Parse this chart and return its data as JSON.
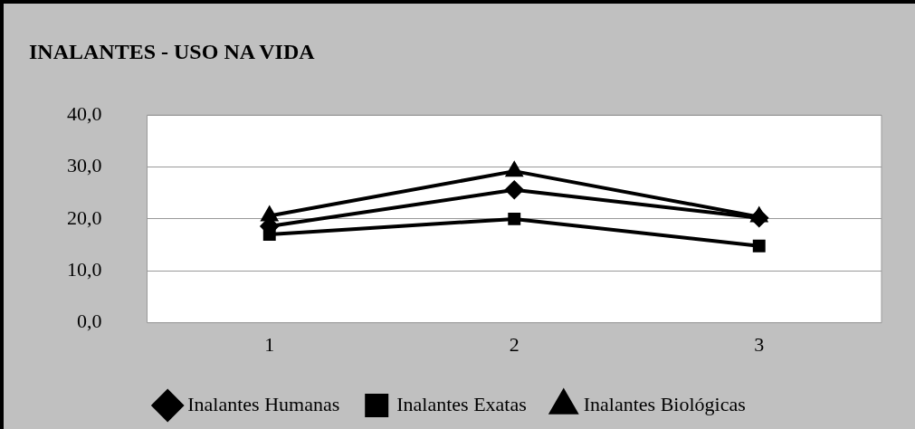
{
  "chart_data": {
    "type": "line",
    "title": "INALANTES - USO NA VIDA",
    "categories": [
      "1",
      "2",
      "3"
    ],
    "series": [
      {
        "name": "Inalantes Humanas",
        "color": "#000000",
        "marker": "diamond",
        "values": [
          18.6,
          25.6,
          20.2
        ]
      },
      {
        "name": "Inalantes Exatas",
        "color": "#000000",
        "marker": "square",
        "values": [
          17.0,
          20.0,
          14.8
        ]
      },
      {
        "name": "Inalantes Biológicas",
        "color": "#000000",
        "marker": "triangle",
        "values": [
          20.6,
          29.2,
          20.4
        ]
      }
    ],
    "ylim": [
      0,
      40
    ],
    "yticks": [
      {
        "value": 0,
        "label": "0,0"
      },
      {
        "value": 10,
        "label": "10,0"
      },
      {
        "value": 20,
        "label": "20,0"
      },
      {
        "value": 30,
        "label": "30,0"
      },
      {
        "value": 40,
        "label": "40,0"
      }
    ],
    "grid": "y",
    "legend": "bottom",
    "line_style": "solid"
  }
}
